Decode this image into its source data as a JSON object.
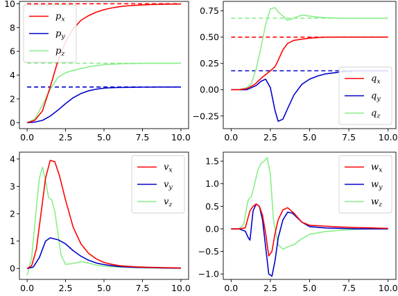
{
  "colors": {
    "x": "#ff0000",
    "y": "#0000cc",
    "z": "#88ee88"
  },
  "chart_data": [
    {
      "type": "line",
      "title": "",
      "xlabel": "",
      "ylabel": "",
      "xlim": [
        -0.5,
        10.5
      ],
      "ylim": [
        -0.5,
        10.2
      ],
      "xticks": [
        0,
        2.5,
        5,
        7.5,
        10
      ],
      "xtick_labels": [
        "0.0",
        "2.5",
        "5.0",
        "7.5",
        "10.0"
      ],
      "yticks": [
        0,
        2,
        4,
        6,
        8,
        10
      ],
      "ytick_labels": [
        "0",
        "2",
        "4",
        "6",
        "8",
        "10"
      ],
      "legend_loc": "upper-left",
      "series": [
        {
          "name": "p",
          "sub": "x",
          "color_key": "x",
          "x": [
            0,
            0.5,
            1.0,
            1.5,
            2.0,
            2.5,
            3.0,
            3.5,
            4.0,
            4.5,
            5.0,
            5.5,
            6.0,
            6.5,
            7.0,
            7.5,
            8.0,
            8.5,
            9.0,
            9.5,
            10.0
          ],
          "y": [
            0,
            0.2,
            1.0,
            3.0,
            5.2,
            6.8,
            7.9,
            8.6,
            9.0,
            9.3,
            9.5,
            9.65,
            9.75,
            9.82,
            9.87,
            9.9,
            9.93,
            9.95,
            9.96,
            9.97,
            9.98
          ]
        },
        {
          "name": "p",
          "sub": "y",
          "color_key": "y",
          "x": [
            0,
            0.5,
            1.0,
            1.5,
            2.0,
            2.5,
            3.0,
            3.5,
            4.0,
            4.5,
            5.0,
            5.5,
            6.0,
            6.5,
            7.0,
            7.5,
            8.0,
            8.5,
            9.0,
            9.5,
            10.0
          ],
          "y": [
            0,
            0.05,
            0.2,
            0.55,
            1.05,
            1.6,
            2.1,
            2.45,
            2.68,
            2.82,
            2.9,
            2.94,
            2.96,
            2.97,
            2.98,
            2.99,
            2.99,
            3.0,
            3.0,
            3.0,
            3.0
          ]
        },
        {
          "name": "p",
          "sub": "z",
          "color_key": "z",
          "x": [
            0,
            0.5,
            1.0,
            1.5,
            2.0,
            2.5,
            3.0,
            3.5,
            4.0,
            4.5,
            5.0,
            5.5,
            6.0,
            6.5,
            7.0,
            7.5,
            8.0,
            8.5,
            9.0,
            9.5,
            10.0
          ],
          "y": [
            0,
            0.3,
            1.5,
            2.8,
            3.8,
            4.2,
            4.4,
            4.55,
            4.7,
            4.8,
            4.88,
            4.92,
            4.95,
            4.97,
            4.98,
            4.99,
            5.0,
            5.0,
            5.0,
            5.0,
            5.0
          ]
        }
      ],
      "references": [
        {
          "color_key": "x",
          "y": 10,
          "x_range": [
            0,
            10
          ]
        },
        {
          "color_key": "y",
          "y": 3,
          "x_range": [
            0,
            10
          ]
        },
        {
          "color_key": "z",
          "y": 5,
          "x_range": [
            0,
            10
          ]
        }
      ]
    },
    {
      "type": "line",
      "title": "",
      "xlabel": "",
      "ylabel": "",
      "xlim": [
        -0.5,
        10.5
      ],
      "ylim": [
        -0.37,
        0.84
      ],
      "xticks": [
        0,
        2.5,
        5,
        7.5,
        10
      ],
      "xtick_labels": [
        "0.0",
        "2.5",
        "5.0",
        "7.5",
        "10.0"
      ],
      "yticks": [
        -0.25,
        0,
        0.25,
        0.5,
        0.75
      ],
      "ytick_labels": [
        "−0.25",
        "0.00",
        "0.25",
        "0.50",
        "0.75"
      ],
      "legend_loc": "lower-right",
      "series": [
        {
          "name": "q",
          "sub": "x",
          "color_key": "x",
          "x": [
            0,
            0.5,
            1.0,
            1.5,
            2.0,
            2.5,
            2.8,
            3.0,
            3.3,
            3.6,
            4.0,
            4.5,
            5.0,
            5.5,
            6.0,
            7.0,
            8.0,
            9.0,
            10.0
          ],
          "y": [
            0,
            0,
            0.01,
            0.05,
            0.12,
            0.18,
            0.22,
            0.28,
            0.38,
            0.44,
            0.47,
            0.48,
            0.49,
            0.495,
            0.5,
            0.5,
            0.5,
            0.5,
            0.5
          ]
        },
        {
          "name": "q",
          "sub": "y",
          "color_key": "y",
          "x": [
            0,
            0.5,
            1.0,
            1.3,
            1.6,
            1.9,
            2.2,
            2.5,
            2.8,
            3.0,
            3.3,
            3.6,
            4.0,
            4.5,
            5.0,
            5.5,
            6.0,
            7.0,
            8.0,
            9.0,
            10.0
          ],
          "y": [
            0,
            0,
            0.0,
            0.02,
            0.04,
            0.08,
            0.1,
            0.02,
            -0.2,
            -0.3,
            -0.28,
            -0.18,
            -0.05,
            0.05,
            0.1,
            0.13,
            0.15,
            0.17,
            0.18,
            0.18,
            0.18
          ]
        },
        {
          "name": "q",
          "sub": "z",
          "color_key": "z",
          "x": [
            0,
            0.5,
            1.0,
            1.3,
            1.6,
            1.9,
            2.2,
            2.5,
            2.8,
            3.0,
            3.3,
            3.6,
            4.0,
            4.3,
            4.6,
            5.0,
            5.5,
            6.0,
            7.0,
            8.0,
            9.0,
            10.0
          ],
          "y": [
            0,
            0.0,
            0.02,
            0.06,
            0.2,
            0.4,
            0.62,
            0.77,
            0.78,
            0.74,
            0.7,
            0.66,
            0.68,
            0.7,
            0.71,
            0.7,
            0.69,
            0.685,
            0.68,
            0.68,
            0.68,
            0.68
          ]
        }
      ],
      "references": [
        {
          "color_key": "x",
          "y": 0.5,
          "x_range": [
            0,
            10
          ]
        },
        {
          "color_key": "y",
          "y": 0.18,
          "x_range": [
            0,
            10
          ]
        },
        {
          "color_key": "z",
          "y": 0.68,
          "x_range": [
            0,
            10
          ]
        }
      ]
    },
    {
      "type": "line",
      "title": "",
      "xlabel": "",
      "ylabel": "",
      "xlim": [
        -0.5,
        10.5
      ],
      "ylim": [
        -0.4,
        4.25
      ],
      "xticks": [
        0,
        2.5,
        5,
        7.5,
        10
      ],
      "xtick_labels": [
        "0.0",
        "2.5",
        "5.0",
        "7.5",
        "10.0"
      ],
      "yticks": [
        0,
        1,
        2,
        3,
        4
      ],
      "ytick_labels": [
        "0",
        "1",
        "2",
        "3",
        "4"
      ],
      "legend_loc": "upper-right",
      "series": [
        {
          "name": "v",
          "sub": "x",
          "color_key": "x",
          "x": [
            0,
            0.3,
            0.6,
            0.9,
            1.2,
            1.5,
            1.8,
            2.1,
            2.5,
            3.0,
            3.5,
            4.0,
            4.5,
            5.0,
            5.5,
            6.0,
            7.0,
            8.0,
            9.0,
            10.0
          ],
          "y": [
            0,
            0.1,
            0.7,
            2.0,
            3.3,
            3.95,
            3.9,
            3.4,
            2.5,
            1.5,
            0.9,
            0.55,
            0.35,
            0.22,
            0.15,
            0.1,
            0.06,
            0.04,
            0.03,
            0.02
          ]
        },
        {
          "name": "v",
          "sub": "y",
          "color_key": "y",
          "x": [
            0,
            0.4,
            0.8,
            1.2,
            1.5,
            2.0,
            2.5,
            3.0,
            3.5,
            4.0,
            4.5,
            5.0,
            5.5,
            6.0,
            7.0,
            8.0,
            9.0,
            10.0
          ],
          "y": [
            0,
            0.05,
            0.4,
            1.0,
            1.12,
            1.05,
            0.9,
            0.65,
            0.45,
            0.3,
            0.2,
            0.14,
            0.1,
            0.07,
            0.04,
            0.03,
            0.02,
            0.01
          ]
        },
        {
          "name": "v",
          "sub": "z",
          "color_key": "z",
          "x": [
            0,
            0.3,
            0.6,
            0.8,
            1.0,
            1.2,
            1.4,
            1.6,
            1.8,
            2.0,
            2.2,
            2.5,
            3.0,
            3.5,
            4.0,
            4.5,
            5.0,
            6.0,
            7.0,
            8.0,
            9.0,
            10.0
          ],
          "y": [
            -0.25,
            0.4,
            2.2,
            3.3,
            3.7,
            3.2,
            2.6,
            2.5,
            2.1,
            1.3,
            0.5,
            0.15,
            0.18,
            0.25,
            0.2,
            0.12,
            0.08,
            0.05,
            0.03,
            0.02,
            0.01,
            0.01
          ]
        }
      ]
    },
    {
      "type": "line",
      "title": "",
      "xlabel": "",
      "ylabel": "",
      "xlim": [
        -0.5,
        10.5
      ],
      "ylim": [
        -1.12,
        1.7
      ],
      "xticks": [
        0,
        2.5,
        5,
        7.5,
        10
      ],
      "xtick_labels": [
        "0.0",
        "2.5",
        "5.0",
        "7.5",
        "10.0"
      ],
      "yticks": [
        -1.0,
        -0.5,
        0,
        0.5,
        1.0,
        1.5
      ],
      "ytick_labels": [
        "−1.0",
        "−0.5",
        "0.0",
        "0.5",
        "1.0",
        "1.5"
      ],
      "legend_loc": "upper-right",
      "series": [
        {
          "name": "w",
          "sub": "x",
          "color_key": "x",
          "x": [
            0,
            0.5,
            0.9,
            1.0,
            1.2,
            1.4,
            1.6,
            1.8,
            2.0,
            2.2,
            2.4,
            2.6,
            2.8,
            3.0,
            3.3,
            3.6,
            4.0,
            4.5,
            5.0,
            6.0,
            7.0,
            8.0,
            9.0,
            10.0
          ],
          "y": [
            0,
            0,
            0.02,
            0.15,
            0.4,
            0.5,
            0.55,
            0.5,
            0.3,
            -0.1,
            -0.6,
            -0.5,
            -0.1,
            0.2,
            0.42,
            0.47,
            0.35,
            0.15,
            0.08,
            0.06,
            0.04,
            0.03,
            0.02,
            0.01
          ]
        },
        {
          "name": "w",
          "sub": "y",
          "color_key": "y",
          "x": [
            0,
            0.5,
            0.9,
            1.1,
            1.2,
            1.4,
            1.6,
            1.8,
            2.0,
            2.2,
            2.4,
            2.6,
            2.8,
            3.0,
            3.3,
            3.6,
            3.9,
            4.2,
            4.5,
            5.0,
            6.0,
            7.0,
            8.0,
            9.0,
            10.0
          ],
          "y": [
            0,
            0,
            -0.05,
            -0.2,
            -0.25,
            0.4,
            0.55,
            0.5,
            0.2,
            -0.4,
            -1.0,
            -1.05,
            -0.7,
            -0.2,
            0.2,
            0.37,
            0.35,
            0.25,
            0.15,
            0.05,
            0.02,
            0.01,
            0.0,
            0.0,
            0.0
          ]
        },
        {
          "name": "w",
          "sub": "z",
          "color_key": "z",
          "x": [
            0,
            0.5,
            0.8,
            1.0,
            1.1,
            1.3,
            1.5,
            1.7,
            1.9,
            2.1,
            2.3,
            2.5,
            2.7,
            3.0,
            3.3,
            3.6,
            4.0,
            4.5,
            5.0,
            6.0,
            7.0,
            8.0,
            9.0,
            10.0
          ],
          "y": [
            0,
            0,
            0.1,
            0.5,
            0.65,
            0.72,
            1.0,
            1.3,
            1.45,
            1.5,
            1.58,
            1.2,
            0.2,
            -0.35,
            -0.45,
            -0.4,
            -0.35,
            -0.22,
            -0.12,
            -0.06,
            -0.03,
            -0.01,
            0.0,
            0.0
          ]
        }
      ]
    }
  ]
}
